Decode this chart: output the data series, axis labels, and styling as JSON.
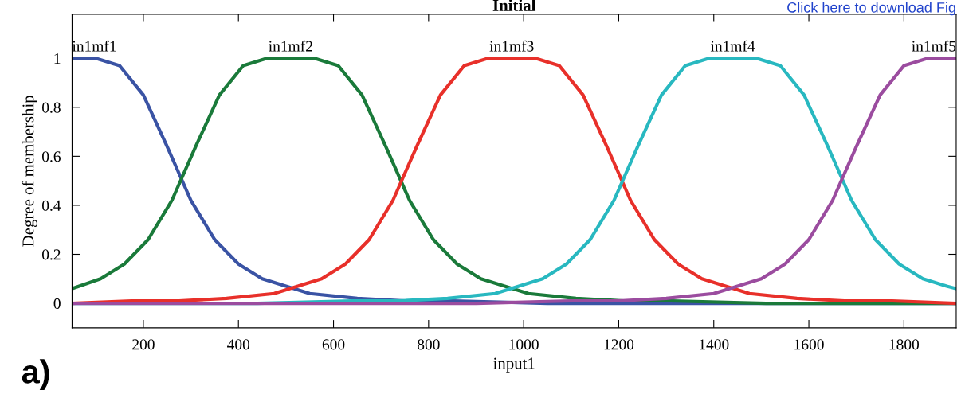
{
  "chart_data": {
    "type": "line",
    "title": "Initial",
    "xlabel": "input1",
    "ylabel": "Degree of membership",
    "xlim": [
      50,
      1910
    ],
    "ylim": [
      -0.1,
      1.18
    ],
    "xticks": [
      200,
      400,
      600,
      800,
      1000,
      1200,
      1400,
      1600,
      1800
    ],
    "yticks": [
      0,
      0.2,
      0.4,
      0.6,
      0.8,
      1
    ],
    "grid": false,
    "marker": "none",
    "line_style": "solid",
    "series": [
      {
        "name": "in1mf1",
        "color": "#3a53a4",
        "x": [
          50,
          100,
          150,
          200,
          250,
          300,
          350,
          400,
          450,
          500,
          550,
          650,
          750,
          850,
          1050,
          1450,
          1910
        ],
        "values": [
          1,
          1,
          0.97,
          0.85,
          0.64,
          0.42,
          0.26,
          0.16,
          0.1,
          0.07,
          0.04,
          0.02,
          0.01,
          0.01,
          0,
          0,
          0
        ]
      },
      {
        "name": "in1mf2",
        "color": "#1a7a3a",
        "x": [
          50,
          110,
          160,
          210,
          260,
          310,
          360,
          410,
          460,
          510,
          560,
          610,
          660,
          710,
          760,
          810,
          860,
          910,
          960,
          1010,
          1110,
          1210,
          1310,
          1510,
          1910
        ],
        "values": [
          0.06,
          0.1,
          0.16,
          0.26,
          0.42,
          0.64,
          0.85,
          0.97,
          1,
          1,
          1,
          0.97,
          0.85,
          0.64,
          0.42,
          0.26,
          0.16,
          0.1,
          0.07,
          0.04,
          0.02,
          0.01,
          0.01,
          0,
          0
        ]
      },
      {
        "name": "in1mf3",
        "color": "#e8302a",
        "x": [
          50,
          175,
          275,
          375,
          475,
          525,
          575,
          625,
          675,
          725,
          775,
          825,
          875,
          925,
          975,
          1025,
          1075,
          1125,
          1175,
          1225,
          1275,
          1325,
          1375,
          1425,
          1475,
          1575,
          1675,
          1775,
          1910
        ],
        "values": [
          0,
          0.01,
          0.01,
          0.02,
          0.04,
          0.07,
          0.1,
          0.16,
          0.26,
          0.42,
          0.64,
          0.85,
          0.97,
          1,
          1,
          1,
          0.97,
          0.85,
          0.64,
          0.42,
          0.26,
          0.16,
          0.1,
          0.07,
          0.04,
          0.02,
          0.01,
          0.01,
          0
        ]
      },
      {
        "name": "in1mf4",
        "color": "#28b8c0",
        "x": [
          50,
          440,
          640,
          740,
          840,
          940,
          990,
          1040,
          1090,
          1140,
          1190,
          1240,
          1290,
          1340,
          1390,
          1440,
          1490,
          1540,
          1590,
          1640,
          1690,
          1740,
          1790,
          1840,
          1890,
          1910
        ],
        "values": [
          0,
          0,
          0.01,
          0.01,
          0.02,
          0.04,
          0.07,
          0.1,
          0.16,
          0.26,
          0.42,
          0.64,
          0.85,
          0.97,
          1,
          1,
          1,
          0.97,
          0.85,
          0.64,
          0.42,
          0.26,
          0.16,
          0.1,
          0.07,
          0.06
        ]
      },
      {
        "name": "in1mf5",
        "color": "#9b4c9f",
        "x": [
          50,
          900,
          1100,
          1200,
          1300,
          1400,
          1450,
          1500,
          1550,
          1600,
          1650,
          1700,
          1750,
          1800,
          1850,
          1900,
          1910
        ],
        "values": [
          0,
          0,
          0.01,
          0.01,
          0.02,
          0.04,
          0.07,
          0.1,
          0.16,
          0.26,
          0.42,
          0.64,
          0.85,
          0.97,
          1,
          1,
          1
        ]
      }
    ],
    "annotations": [
      "a)",
      "Click here to download Fig"
    ]
  }
}
